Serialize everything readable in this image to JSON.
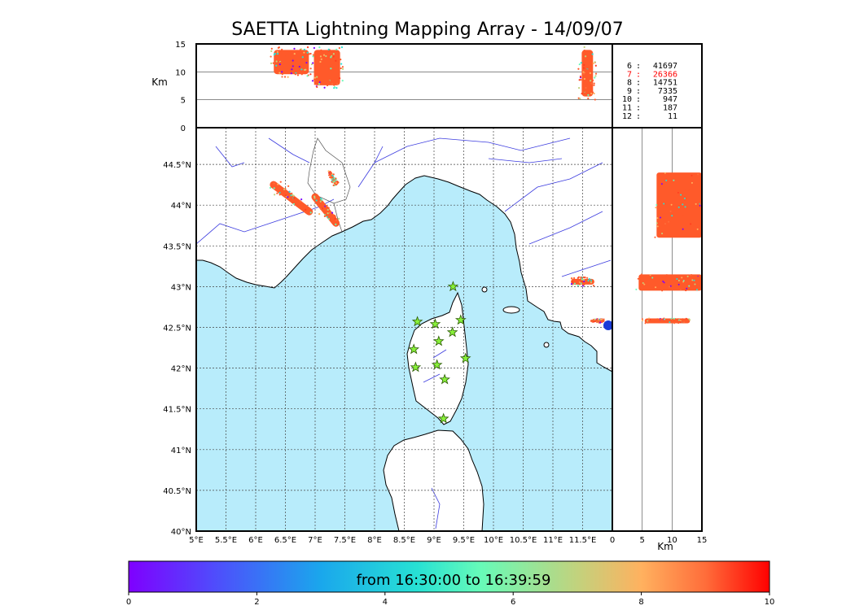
{
  "title": "SAETTA Lightning Mapping Array - 14/09/07",
  "colors": {
    "sea": "#b8ecfb",
    "land": "#ffffff",
    "coast": "#000000",
    "river": "#3b3bdf",
    "border": "#555555",
    "flash_main": "#ff5a2a",
    "highlight": "#ff0000",
    "station": "#88f03a",
    "sensor_dot": "#1a3bd8"
  },
  "map": {
    "lon_ticks": [
      "5°E",
      "5.5°E",
      "6°E",
      "6.5°E",
      "7°E",
      "7.5°E",
      "8°E",
      "8.5°E",
      "9°E",
      "9.5°E",
      "10°E",
      "10.5°E",
      "11°E",
      "11.5°E"
    ],
    "lat_ticks": [
      "40°N",
      "40.5°N",
      "41°N",
      "41.5°N",
      "42°N",
      "42.5°N",
      "43°N",
      "43.5°N",
      "44°N",
      "44.5°N"
    ],
    "lon_range": [
      5,
      12
    ],
    "lat_range": [
      40,
      44.95
    ],
    "grid": true
  },
  "altitude_panel": {
    "ylabel": "Km",
    "yticks": [
      "0",
      "5",
      "10",
      "15"
    ],
    "yrange": [
      0,
      15
    ]
  },
  "lon_alt_panel": {
    "xlabel": "Km",
    "xticks": [
      "0",
      "5",
      "10",
      "15"
    ],
    "xrange": [
      0,
      15
    ]
  },
  "counts": [
    {
      "k": "6",
      "v": "41697",
      "hl": false
    },
    {
      "k": "7",
      "v": "26366",
      "hl": true
    },
    {
      "k": "8",
      "v": "14751",
      "hl": false
    },
    {
      "k": "9",
      "v": "7335",
      "hl": false
    },
    {
      "k": "10",
      "v": "947",
      "hl": false
    },
    {
      "k": "11",
      "v": "187",
      "hl": false
    },
    {
      "k": "12",
      "v": "11",
      "hl": false
    }
  ],
  "colorbar": {
    "label": "from 16:30:00 to 16:39:59",
    "ticks": [
      "0",
      "2",
      "4",
      "6",
      "8",
      "10"
    ],
    "range": [
      0,
      10
    ]
  },
  "stations": [
    {
      "lon": 9.32,
      "lat": 43.0
    },
    {
      "lon": 8.72,
      "lat": 42.57
    },
    {
      "lon": 9.02,
      "lat": 42.54
    },
    {
      "lon": 9.45,
      "lat": 42.59
    },
    {
      "lon": 9.08,
      "lat": 42.33
    },
    {
      "lon": 9.31,
      "lat": 42.44
    },
    {
      "lon": 8.66,
      "lat": 42.23
    },
    {
      "lon": 9.53,
      "lat": 42.12
    },
    {
      "lon": 8.69,
      "lat": 42.01
    },
    {
      "lon": 9.05,
      "lat": 42.04
    },
    {
      "lon": 9.18,
      "lat": 41.86
    },
    {
      "lon": 9.16,
      "lat": 41.38
    }
  ],
  "clusters": [
    {
      "lon0": 6.3,
      "lat0": 44.25,
      "lon1": 6.9,
      "lat1": 43.92,
      "w": 9
    },
    {
      "lon0": 7.0,
      "lat0": 44.1,
      "lon1": 7.35,
      "lat1": 43.78,
      "w": 9
    },
    {
      "lon0": 11.35,
      "lat0": 43.06,
      "lon1": 11.65,
      "lat1": 43.06,
      "w": 7
    },
    {
      "lon0": 7.25,
      "lat0": 44.4,
      "lon1": 7.35,
      "lat1": 44.26,
      "w": 4
    },
    {
      "lon0": 11.65,
      "lat0": 42.58,
      "lon1": 11.85,
      "lat1": 42.58,
      "w": 3
    }
  ],
  "alt_clusters": [
    {
      "lon": 6.6,
      "w": 0.7,
      "alt0": 9,
      "alt1": 14.5
    },
    {
      "lon": 7.2,
      "w": 0.55,
      "alt0": 7,
      "alt1": 14.5
    },
    {
      "lon": 11.58,
      "w": 0.3,
      "alt0": 5,
      "alt1": 14.5
    }
  ],
  "lonalt_clusters": [
    {
      "lat": 44.0,
      "h": 0.4,
      "alt0": 7,
      "alt1": 15
    },
    {
      "lat": 43.05,
      "h": 0.1,
      "alt0": 4,
      "alt1": 15
    },
    {
      "lat": 42.58,
      "h": 0.03,
      "alt0": 5,
      "alt1": 13
    }
  ]
}
